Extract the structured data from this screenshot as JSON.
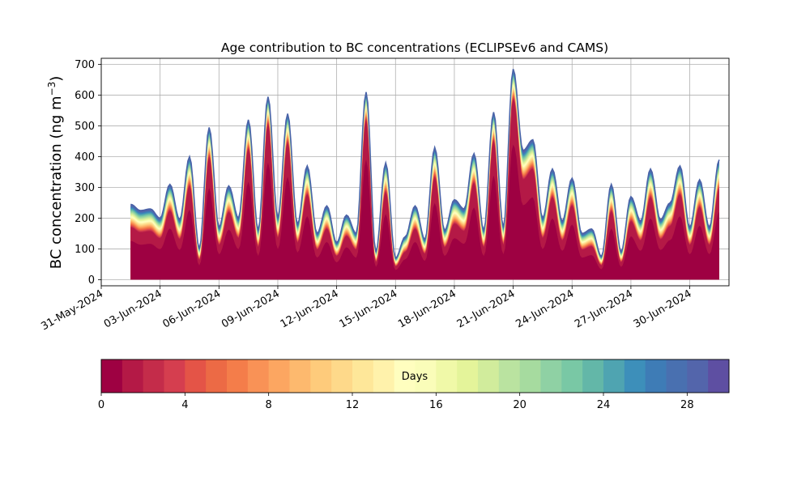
{
  "chart_data": {
    "type": "area",
    "title": "Age contribution to BC concentrations (ECLIPSEv6 and CAMS)",
    "ylabel": "BC concentration (ng m",
    "ylabel_sup": "−3",
    "ylabel_close": ")",
    "ylim": [
      -20,
      720
    ],
    "yticks": [
      0,
      100,
      200,
      300,
      400,
      500,
      600,
      700
    ],
    "xlim": [
      "2024-05-31",
      "2024-07-02"
    ],
    "xticks": [
      "31-May-2024",
      "03-Jun-2024",
      "06-Jun-2024",
      "09-Jun-2024",
      "12-Jun-2024",
      "15-Jun-2024",
      "18-Jun-2024",
      "21-Jun-2024",
      "24-Jun-2024",
      "27-Jun-2024",
      "30-Jun-2024"
    ],
    "grid": true,
    "stacked_by": "age in days (0-30)",
    "total_series": {
      "x": [
        "2024-06-01 12:00",
        "2024-06-02 00:00",
        "2024-06-02 12:00",
        "2024-06-03 00:00",
        "2024-06-03 12:00",
        "2024-06-04 00:00",
        "2024-06-04 12:00",
        "2024-06-05 00:00",
        "2024-06-05 12:00",
        "2024-06-06 00:00",
        "2024-06-06 12:00",
        "2024-06-07 00:00",
        "2024-06-07 12:00",
        "2024-06-08 00:00",
        "2024-06-08 12:00",
        "2024-06-09 00:00",
        "2024-06-09 12:00",
        "2024-06-10 00:00",
        "2024-06-10 12:00",
        "2024-06-11 00:00",
        "2024-06-11 12:00",
        "2024-06-12 00:00",
        "2024-06-12 12:00",
        "2024-06-13 00:00",
        "2024-06-13 12:00",
        "2024-06-14 00:00",
        "2024-06-14 12:00",
        "2024-06-15 00:00",
        "2024-06-15 12:00",
        "2024-06-16 00:00",
        "2024-06-16 12:00",
        "2024-06-17 00:00",
        "2024-06-17 12:00",
        "2024-06-18 00:00",
        "2024-06-18 12:00",
        "2024-06-19 00:00",
        "2024-06-19 12:00",
        "2024-06-20 00:00",
        "2024-06-20 12:00",
        "2024-06-21 00:00",
        "2024-06-21 12:00",
        "2024-06-22 00:00",
        "2024-06-22 12:00",
        "2024-06-23 00:00",
        "2024-06-23 12:00",
        "2024-06-24 00:00",
        "2024-06-24 12:00",
        "2024-06-25 00:00",
        "2024-06-25 12:00",
        "2024-06-26 00:00",
        "2024-06-26 12:00",
        "2024-06-27 00:00",
        "2024-06-27 12:00",
        "2024-06-28 00:00",
        "2024-06-28 12:00",
        "2024-06-29 00:00",
        "2024-06-29 12:00",
        "2024-06-30 00:00",
        "2024-06-30 12:00",
        "2024-07-01 00:00",
        "2024-07-01 12:00"
      ],
      "values": [
        245,
        225,
        230,
        200,
        310,
        195,
        400,
        100,
        495,
        170,
        305,
        200,
        520,
        160,
        595,
        200,
        540,
        180,
        370,
        150,
        240,
        120,
        210,
        150,
        610,
        90,
        380,
        70,
        140,
        240,
        130,
        430,
        160,
        260,
        230,
        410,
        160,
        545,
        170,
        685,
        420,
        455,
        200,
        360,
        190,
        330,
        150,
        165,
        75,
        310,
        90,
        270,
        190,
        360,
        195,
        250,
        370,
        170,
        325,
        170,
        390
      ]
    },
    "colorbar": {
      "label": "Days",
      "min": 0,
      "max": 30,
      "ticks": [
        0,
        4,
        8,
        12,
        16,
        20,
        24,
        28
      ],
      "colors": [
        "#9e0142",
        "#b41946",
        "#c42c4a",
        "#d53e4f",
        "#e45447",
        "#ec6a45",
        "#f47d4a",
        "#f99256",
        "#fca661",
        "#fdb96e",
        "#fecb7b",
        "#fed98a",
        "#fee799",
        "#fff2ab",
        "#fffebf",
        "#fafdb9",
        "#f0f9a8",
        "#e4f49a",
        "#d1ec9c",
        "#bae3a0",
        "#a6db9f",
        "#8fd1a4",
        "#79c8a5",
        "#63b7a8",
        "#4fa4b1",
        "#3d8fba",
        "#3e7cb6",
        "#4970b0",
        "#5365ab",
        "#5e4fa2"
      ]
    }
  }
}
